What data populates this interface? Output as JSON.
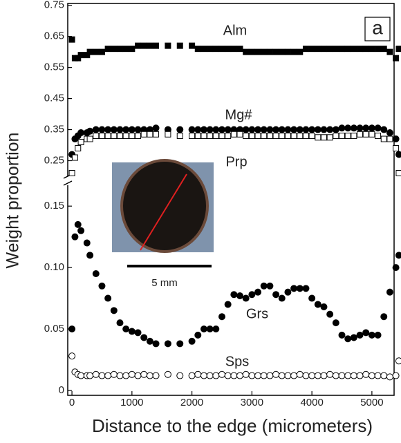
{
  "panel_label": "a",
  "inset": {
    "scale_bar_label": "5 mm"
  },
  "chart_data": [
    {
      "type": "scatter",
      "ylabel": "Weight proportion",
      "x": [
        0,
        50,
        100,
        150,
        250,
        300,
        400,
        500,
        600,
        700,
        800,
        900,
        1000,
        1100,
        1200,
        1300,
        1400,
        1600,
        1800,
        2000,
        2100,
        2200,
        2300,
        2400,
        2500,
        2600,
        2700,
        2800,
        2900,
        3000,
        3100,
        3200,
        3300,
        3400,
        3500,
        3600,
        3700,
        3800,
        3900,
        4000,
        4100,
        4200,
        4300,
        4400,
        4500,
        4600,
        4700,
        4800,
        4900,
        5000,
        5100,
        5200,
        5300,
        5400,
        5450
      ],
      "xlim": [
        -70,
        5370
      ],
      "ylim": [
        0.2,
        0.756
      ],
      "yticks": [
        0.25,
        0.35,
        0.45,
        0.55,
        0.65,
        0.75
      ],
      "series": [
        {
          "name": "Alm",
          "color": "#000000",
          "marker": "square",
          "filled": true,
          "values": [
            0.64,
            0.58,
            0.58,
            0.59,
            0.59,
            0.6,
            0.6,
            0.6,
            0.61,
            0.61,
            0.61,
            0.61,
            0.61,
            0.62,
            0.62,
            0.62,
            0.62,
            0.62,
            0.62,
            0.62,
            0.61,
            0.61,
            0.61,
            0.61,
            0.61,
            0.61,
            0.61,
            0.61,
            0.6,
            0.6,
            0.6,
            0.6,
            0.6,
            0.6,
            0.6,
            0.6,
            0.6,
            0.6,
            0.61,
            0.61,
            0.61,
            0.61,
            0.61,
            0.61,
            0.61,
            0.61,
            0.61,
            0.61,
            0.61,
            0.61,
            0.61,
            0.61,
            0.6,
            0.58,
            0.61
          ]
        },
        {
          "name": "Mg#",
          "color": "#000000",
          "marker": "circle",
          "filled": true,
          "values": [
            0.27,
            0.32,
            0.33,
            0.34,
            0.34,
            0.345,
            0.35,
            0.35,
            0.35,
            0.35,
            0.35,
            0.35,
            0.35,
            0.35,
            0.35,
            0.35,
            0.355,
            0.35,
            0.35,
            0.35,
            0.35,
            0.35,
            0.35,
            0.35,
            0.35,
            0.35,
            0.35,
            0.35,
            0.35,
            0.35,
            0.35,
            0.35,
            0.35,
            0.35,
            0.35,
            0.35,
            0.35,
            0.35,
            0.35,
            0.35,
            0.35,
            0.35,
            0.35,
            0.35,
            0.355,
            0.355,
            0.355,
            0.355,
            0.355,
            0.355,
            0.355,
            0.35,
            0.34,
            0.32,
            0.27
          ]
        },
        {
          "name": "Prp",
          "color": "#000000",
          "marker": "square",
          "filled": false,
          "values": [
            0.21,
            0.26,
            0.29,
            0.31,
            0.32,
            0.32,
            0.33,
            0.33,
            0.33,
            0.33,
            0.33,
            0.33,
            0.33,
            0.33,
            0.335,
            0.335,
            0.335,
            0.335,
            0.33,
            0.33,
            0.33,
            0.33,
            0.33,
            0.33,
            0.33,
            0.33,
            0.335,
            0.335,
            0.33,
            0.33,
            0.33,
            0.33,
            0.33,
            0.33,
            0.33,
            0.33,
            0.33,
            0.33,
            0.33,
            0.33,
            0.325,
            0.325,
            0.325,
            0.33,
            0.33,
            0.33,
            0.33,
            0.335,
            0.335,
            0.335,
            0.33,
            0.32,
            0.32,
            0.29,
            0.21
          ]
        }
      ]
    },
    {
      "type": "scatter",
      "xlabel": "Distance to the edge (micrometers)",
      "x": [
        0,
        50,
        100,
        150,
        250,
        300,
        400,
        500,
        600,
        700,
        800,
        900,
        1000,
        1100,
        1200,
        1300,
        1400,
        1600,
        1800,
        2000,
        2100,
        2200,
        2300,
        2400,
        2500,
        2600,
        2700,
        2800,
        2900,
        3000,
        3100,
        3200,
        3300,
        3400,
        3500,
        3600,
        3700,
        3800,
        3900,
        4000,
        4100,
        4200,
        4300,
        4400,
        4500,
        4600,
        4700,
        4800,
        4900,
        5000,
        5100,
        5200,
        5300,
        5400,
        5450
      ],
      "xlim": [
        -70,
        5370
      ],
      "xticks": [
        0,
        1000,
        2000,
        3000,
        4000,
        5000
      ],
      "ylim": [
        -0.004,
        0.167
      ],
      "yticks": [
        0,
        0.05,
        {
          "value": 0.1,
          "label": "0.10"
        },
        0.15
      ],
      "series": [
        {
          "name": "Grs",
          "color": "#000000",
          "marker": "circle",
          "filled": true,
          "values": [
            0.05,
            0.125,
            0.135,
            0.13,
            0.12,
            0.11,
            0.095,
            0.085,
            0.075,
            0.065,
            0.055,
            0.05,
            0.048,
            0.047,
            0.043,
            0.04,
            0.038,
            0.038,
            0.038,
            0.04,
            0.045,
            0.05,
            0.05,
            0.05,
            0.06,
            0.07,
            0.078,
            0.077,
            0.075,
            0.078,
            0.08,
            0.085,
            0.085,
            0.078,
            0.075,
            0.08,
            0.083,
            0.083,
            0.083,
            0.075,
            0.07,
            0.068,
            0.062,
            0.055,
            0.045,
            0.042,
            0.043,
            0.045,
            0.047,
            0.045,
            0.045,
            0.06,
            0.08,
            0.1,
            0.11
          ]
        },
        {
          "name": "Sps",
          "color": "#000000",
          "marker": "circle",
          "filled": false,
          "values": [
            0.028,
            0.015,
            0.013,
            0.012,
            0.012,
            0.012,
            0.013,
            0.012,
            0.012,
            0.013,
            0.012,
            0.012,
            0.013,
            0.012,
            0.013,
            0.012,
            0.012,
            0.013,
            0.012,
            0.012,
            0.013,
            0.012,
            0.012,
            0.012,
            0.013,
            0.012,
            0.012,
            0.012,
            0.013,
            0.012,
            0.012,
            0.012,
            0.012,
            0.013,
            0.012,
            0.012,
            0.012,
            0.013,
            0.012,
            0.012,
            0.012,
            0.012,
            0.013,
            0.012,
            0.012,
            0.012,
            0.012,
            0.012,
            0.013,
            0.012,
            0.012,
            0.012,
            0.011,
            0.012,
            0.024
          ]
        }
      ]
    }
  ]
}
